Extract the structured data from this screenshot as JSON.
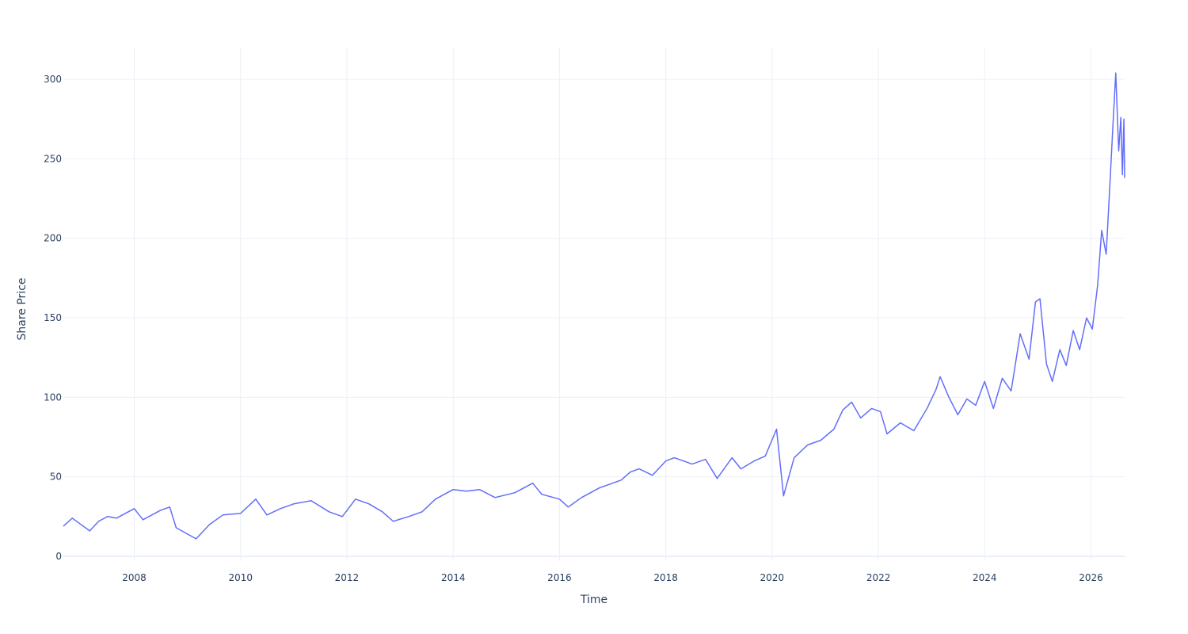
{
  "chart_data": {
    "type": "line",
    "title": "",
    "xlabel": "Time",
    "ylabel": "Share Price",
    "xlim": [
      "2006-09-01",
      "2026-08-20"
    ],
    "ylim": [
      -3,
      320
    ],
    "x_ticks": [
      "2008",
      "2010",
      "2012",
      "2014",
      "2016",
      "2018",
      "2020",
      "2022",
      "2024",
      "2026"
    ],
    "y_ticks": [
      0,
      50,
      100,
      150,
      200,
      250,
      300
    ],
    "grid": true,
    "legend": "none",
    "line_color": "#636efa",
    "series": [
      {
        "x": [
          "2006-09-01",
          "2006-11-01",
          "2007-03-01",
          "2007-05-01",
          "2007-07-01",
          "2007-09-01",
          "2007-11-01",
          "2008-01-01",
          "2008-03-01",
          "2008-05-01",
          "2008-07-01",
          "2008-09-01",
          "2008-10-15",
          "2009-01-01",
          "2009-03-01",
          "2009-06-01",
          "2009-09-01",
          "2010-01-01",
          "2010-04-15",
          "2010-07-01",
          "2010-10-01",
          "2011-01-01",
          "2011-05-01",
          "2011-09-01",
          "2011-12-01",
          "2012-03-01",
          "2012-06-01",
          "2012-09-01",
          "2012-11-15",
          "2013-03-01",
          "2013-06-01",
          "2013-09-01",
          "2014-01-01",
          "2014-04-01",
          "2014-07-01",
          "2014-10-15",
          "2015-03-01",
          "2015-07-01",
          "2015-09-01",
          "2016-01-01",
          "2016-03-01",
          "2016-06-01",
          "2016-10-01",
          "2017-01-01",
          "2017-03-01",
          "2017-05-01",
          "2017-07-01",
          "2017-10-01",
          "2018-01-01",
          "2018-03-01",
          "2018-07-01",
          "2018-10-01",
          "2018-12-20",
          "2019-04-01",
          "2019-06-01",
          "2019-09-01",
          "2019-11-15",
          "2020-02-01",
          "2020-03-20",
          "2020-06-01",
          "2020-09-01",
          "2020-12-01",
          "2021-03-01",
          "2021-05-01",
          "2021-07-01",
          "2021-09-01",
          "2021-11-15",
          "2022-01-15",
          "2022-03-01",
          "2022-06-01",
          "2022-09-01",
          "2022-12-01",
          "2023-02-01",
          "2023-03-01",
          "2023-05-01",
          "2023-07-01",
          "2023-09-01",
          "2023-11-01",
          "2024-01-01",
          "2024-03-01",
          "2024-05-01",
          "2024-07-01",
          "2024-09-01",
          "2024-11-01",
          "2024-12-15",
          "2025-01-15",
          "2025-03-01",
          "2025-04-10",
          "2025-06-01",
          "2025-07-15",
          "2025-09-01",
          "2025-10-15",
          "2025-12-01",
          "2026-01-10",
          "2026-02-15",
          "2026-03-15",
          "2026-04-15",
          "2026-05-10",
          "2026-06-01",
          "2026-06-20",
          "2026-07-10",
          "2026-07-25",
          "2026-08-05",
          "2026-08-15",
          "2026-08-20"
        ],
        "y": [
          19,
          24,
          16,
          22,
          25,
          24,
          27,
          30,
          23,
          26,
          29,
          31,
          18,
          14,
          11,
          20,
          26,
          27,
          36,
          26,
          30,
          33,
          35,
          28,
          25,
          36,
          33,
          28,
          22,
          25,
          28,
          36,
          42,
          41,
          42,
          37,
          40,
          46,
          39,
          36,
          31,
          37,
          43,
          46,
          48,
          53,
          55,
          51,
          60,
          62,
          58,
          61,
          49,
          62,
          55,
          60,
          63,
          80,
          38,
          62,
          70,
          73,
          80,
          92,
          97,
          87,
          93,
          91,
          77,
          84,
          79,
          93,
          105,
          113,
          100,
          89,
          99,
          95,
          110,
          93,
          112,
          104,
          140,
          124,
          160,
          162,
          121,
          110,
          130,
          120,
          142,
          130,
          150,
          143,
          170,
          205,
          190,
          233,
          272,
          304,
          255,
          276,
          240,
          275,
          238
        ]
      }
    ]
  }
}
